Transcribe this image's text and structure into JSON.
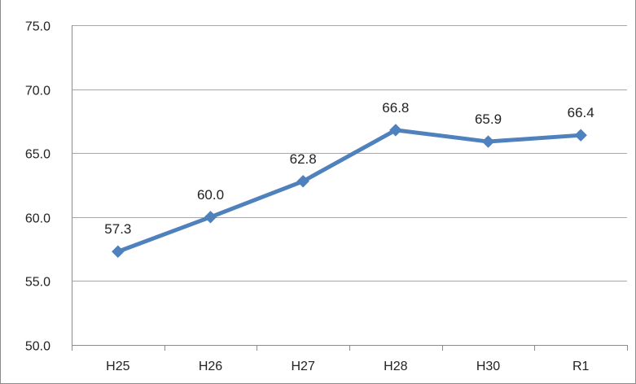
{
  "chart_data": {
    "type": "line",
    "title": "",
    "xlabel": "",
    "ylabel": "",
    "categories": [
      "H25",
      "H26",
      "H27",
      "H28",
      "H30",
      "R1"
    ],
    "series": [
      {
        "values": [
          57.3,
          60.0,
          62.8,
          66.8,
          65.9,
          66.4
        ],
        "color": "#4f81bd",
        "marker": "diamond"
      }
    ],
    "data_labels": [
      "57.3",
      "60.0",
      "62.8",
      "66.8",
      "65.9",
      "66.4"
    ],
    "ylim": [
      50.0,
      75.0
    ],
    "yticks": [
      50.0,
      55.0,
      60.0,
      65.0,
      70.0,
      75.0
    ],
    "ytick_labels": [
      "50.0",
      "55.0",
      "60.0",
      "65.0",
      "70.0",
      "75.0"
    ],
    "grid": true,
    "gridline_color": "#a6a6a6",
    "legend": "none"
  }
}
